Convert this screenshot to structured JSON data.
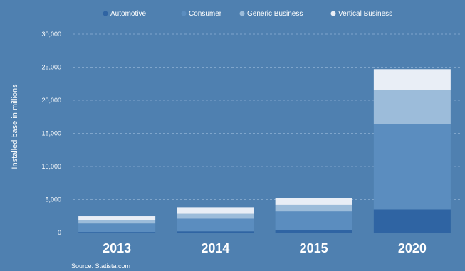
{
  "chart_data": {
    "type": "bar",
    "stacked": true,
    "title": "",
    "xlabel": "",
    "ylabel": "Installed base in millions",
    "categories": [
      "2013",
      "2014",
      "2015",
      "2020"
    ],
    "y_tick_labels": [
      "0",
      "5,000",
      "10,000",
      "15,000",
      "20,000",
      "25,000",
      "30,000"
    ],
    "ylim": [
      0,
      30000
    ],
    "grid": true,
    "legend_position": "top",
    "series": [
      {
        "name": "Automotive",
        "color": "#2f64a3",
        "values": [
          90,
          190,
          370,
          3500
        ]
      },
      {
        "name": "Consumer",
        "color": "#5b8dbf",
        "values": [
          1280,
          1910,
          2830,
          12900
        ]
      },
      {
        "name": "Generic Business",
        "color": "#9cbcda",
        "values": [
          500,
          730,
          1000,
          5100
        ]
      },
      {
        "name": "Vertical Business",
        "color": "#e9eef6",
        "values": [
          600,
          1000,
          1000,
          3200
        ]
      }
    ],
    "source": "Source: Statista.com"
  }
}
